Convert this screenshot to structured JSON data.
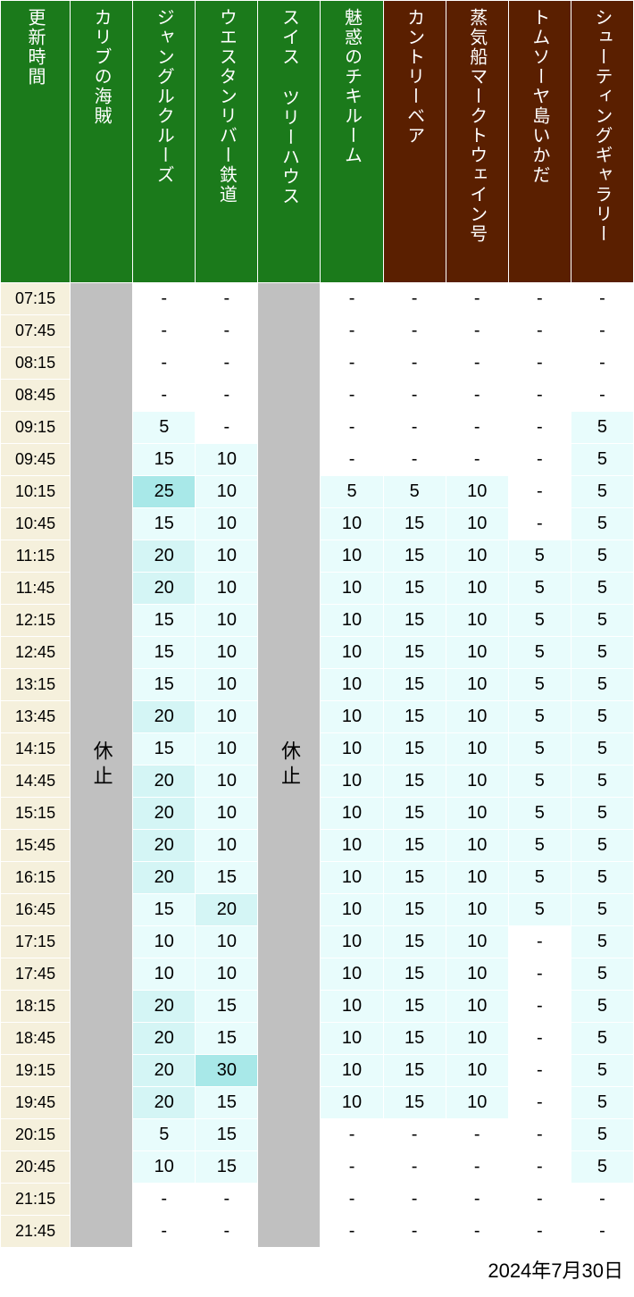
{
  "date": "2024年7月30日",
  "headers": {
    "time": "更新時間",
    "attractions": [
      {
        "name": "カリブの海賊",
        "color": "green"
      },
      {
        "name": "ジャングルクルーズ",
        "color": "green"
      },
      {
        "name": "ウエスタンリバー鉄道",
        "color": "green"
      },
      {
        "name": "スイス ツリーハウス",
        "color": "green"
      },
      {
        "name": "魅惑のチキルーム",
        "color": "green"
      },
      {
        "name": "カントリーベア",
        "color": "brown"
      },
      {
        "name": "蒸気船マークトウェイン号",
        "color": "brown"
      },
      {
        "name": "トムソーヤ島いかだ",
        "color": "brown"
      },
      {
        "name": "シューティングギャラリー",
        "color": "brown"
      }
    ]
  },
  "closed_label": "休止",
  "closed_columns": [
    0,
    3
  ],
  "colors": {
    "green_header": "#1b7a1b",
    "brown_header": "#5a1f00",
    "time_cell": "#f5f0dc",
    "closed_cell": "#c0c0c0",
    "wait_thresholds": [
      {
        "max": 0,
        "color": "#ffffff"
      },
      {
        "max": 5,
        "color": "#e8fcfc"
      },
      {
        "max": 10,
        "color": "#e8fcfc"
      },
      {
        "max": 15,
        "color": "#e8fcfc"
      },
      {
        "max": 20,
        "color": "#d4f5f5"
      },
      {
        "max": 25,
        "color": "#a8e8e8"
      },
      {
        "max": 30,
        "color": "#a8e8e8"
      }
    ]
  },
  "times": [
    "07:15",
    "07:45",
    "08:15",
    "08:45",
    "09:15",
    "09:45",
    "10:15",
    "10:45",
    "11:15",
    "11:45",
    "12:15",
    "12:45",
    "13:15",
    "13:45",
    "14:15",
    "14:45",
    "15:15",
    "15:45",
    "16:15",
    "16:45",
    "17:15",
    "17:45",
    "18:15",
    "18:45",
    "19:15",
    "19:45",
    "20:15",
    "20:45",
    "21:15",
    "21:45"
  ],
  "data": {
    "1": [
      "-",
      "-",
      "-",
      "-",
      "5",
      "15",
      "25",
      "15",
      "20",
      "20",
      "15",
      "15",
      "15",
      "20",
      "15",
      "20",
      "20",
      "20",
      "20",
      "15",
      "10",
      "10",
      "20",
      "20",
      "20",
      "20",
      "5",
      "10",
      "-",
      "-"
    ],
    "2": [
      "-",
      "-",
      "-",
      "-",
      "-",
      "10",
      "10",
      "10",
      "10",
      "10",
      "10",
      "10",
      "10",
      "10",
      "10",
      "10",
      "10",
      "10",
      "15",
      "20",
      "10",
      "10",
      "15",
      "15",
      "30",
      "15",
      "15",
      "15",
      "-",
      "-"
    ],
    "4": [
      "-",
      "-",
      "-",
      "-",
      "-",
      "-",
      "5",
      "10",
      "10",
      "10",
      "10",
      "10",
      "10",
      "10",
      "10",
      "10",
      "10",
      "10",
      "10",
      "10",
      "10",
      "10",
      "10",
      "10",
      "10",
      "10",
      "-",
      "-",
      "-",
      "-"
    ],
    "5": [
      "-",
      "-",
      "-",
      "-",
      "-",
      "-",
      "5",
      "15",
      "15",
      "15",
      "15",
      "15",
      "15",
      "15",
      "15",
      "15",
      "15",
      "15",
      "15",
      "15",
      "15",
      "15",
      "15",
      "15",
      "15",
      "15",
      "-",
      "-",
      "-",
      "-"
    ],
    "6": [
      "-",
      "-",
      "-",
      "-",
      "-",
      "-",
      "10",
      "10",
      "10",
      "10",
      "10",
      "10",
      "10",
      "10",
      "10",
      "10",
      "10",
      "10",
      "10",
      "10",
      "10",
      "10",
      "10",
      "10",
      "10",
      "10",
      "-",
      "-",
      "-",
      "-"
    ],
    "7": [
      "-",
      "-",
      "-",
      "-",
      "-",
      "-",
      "-",
      "-",
      "5",
      "5",
      "5",
      "5",
      "5",
      "5",
      "5",
      "5",
      "5",
      "5",
      "5",
      "5",
      "-",
      "-",
      "-",
      "-",
      "-",
      "-",
      "-",
      "-",
      "-",
      "-"
    ],
    "8": [
      "-",
      "-",
      "-",
      "-",
      "5",
      "5",
      "5",
      "5",
      "5",
      "5",
      "5",
      "5",
      "5",
      "5",
      "5",
      "5",
      "5",
      "5",
      "5",
      "5",
      "5",
      "5",
      "5",
      "5",
      "5",
      "5",
      "5",
      "5",
      "-",
      "-"
    ]
  }
}
